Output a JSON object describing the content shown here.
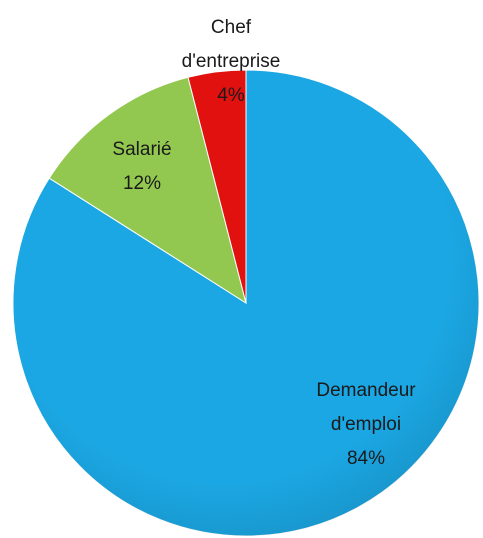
{
  "chart_data": {
    "type": "pie",
    "categories": [
      "Demandeur d'emploi",
      "Salarié",
      "Chef d'entreprise"
    ],
    "values": [
      84,
      12,
      4
    ],
    "value_labels": [
      "84%",
      "12%",
      "4%"
    ],
    "colors": [
      "#1ba7e3",
      "#93c850",
      "#e0110f"
    ]
  }
}
